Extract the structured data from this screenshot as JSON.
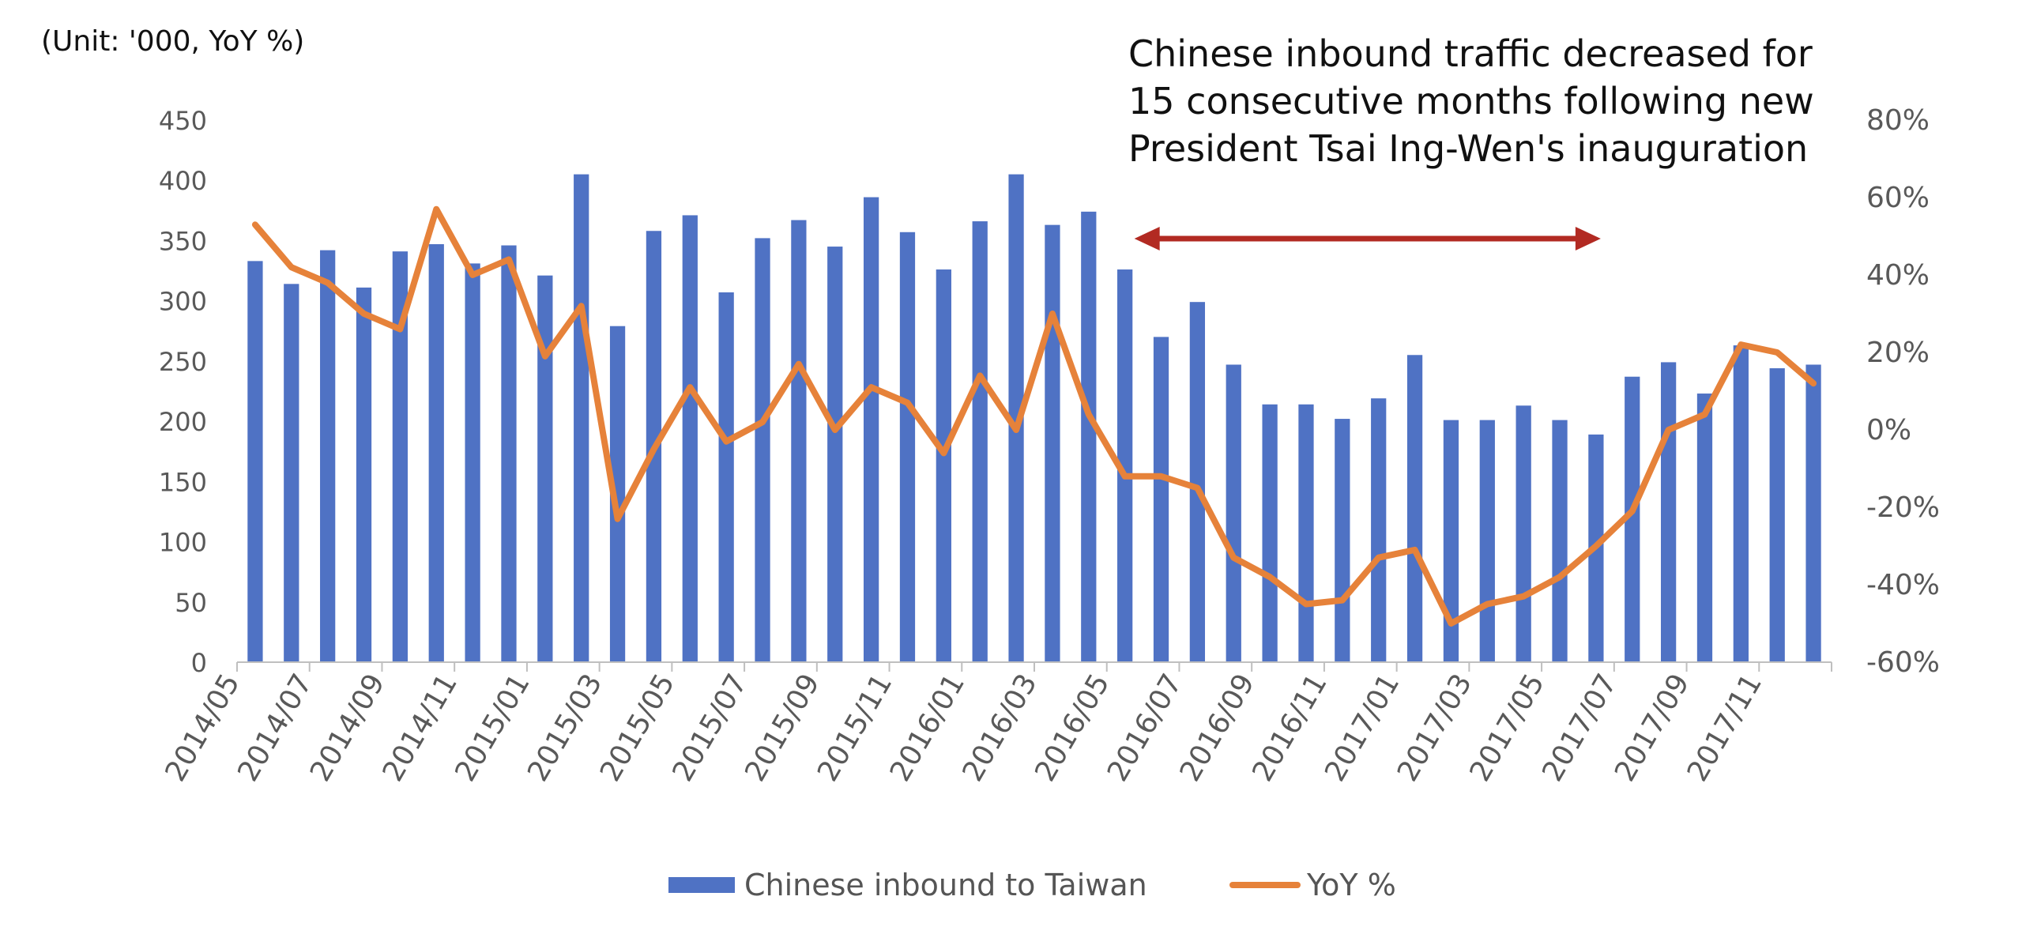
{
  "chart_data": {
    "type": "bar",
    "unit_label": "(Unit: '000, YoY %)",
    "annotation": "Chinese inbound traffic decreased for 15 consecutive months following new President Tsai Ing-Wen's inauguration",
    "annotation_span": [
      "2016/05",
      "2017/06"
    ],
    "categories": [
      "2014/05",
      "2014/06",
      "2014/07",
      "2014/08",
      "2014/09",
      "2014/10",
      "2014/11",
      "2014/12",
      "2015/01",
      "2015/02",
      "2015/03",
      "2015/04",
      "2015/05",
      "2015/06",
      "2015/07",
      "2015/08",
      "2015/09",
      "2015/10",
      "2015/11",
      "2015/12",
      "2016/01",
      "2016/02",
      "2016/03",
      "2016/04",
      "2016/05",
      "2016/06",
      "2016/07",
      "2016/08",
      "2016/09",
      "2016/10",
      "2016/11",
      "2016/12",
      "2017/01",
      "2017/02",
      "2017/03",
      "2017/04",
      "2017/05",
      "2017/06",
      "2017/07",
      "2017/08",
      "2017/09",
      "2017/10",
      "2017/11",
      "2017/12"
    ],
    "x_tick_labels": [
      "2014/05",
      "2014/07",
      "2014/09",
      "2014/11",
      "2015/01",
      "2015/03",
      "2015/05",
      "2015/07",
      "2015/09",
      "2015/11",
      "2016/01",
      "2016/03",
      "2016/05",
      "2016/07",
      "2016/09",
      "2016/11",
      "2017/01",
      "2017/03",
      "2017/05",
      "2017/07",
      "2017/09",
      "2017/11"
    ],
    "series": [
      {
        "name": "Chinese inbound to Taiwan",
        "type": "bar",
        "axis": "left",
        "color": "#4f72c4",
        "values": [
          333,
          314,
          342,
          311,
          341,
          347,
          331,
          346,
          321,
          405,
          279,
          358,
          371,
          307,
          352,
          367,
          345,
          386,
          357,
          326,
          366,
          405,
          363,
          374,
          326,
          270,
          299,
          247,
          214,
          214,
          202,
          219,
          255,
          201,
          201,
          213,
          201,
          189,
          237,
          249,
          223,
          263,
          244,
          247
        ]
      },
      {
        "name": "YoY %",
        "type": "line",
        "axis": "right",
        "color": "#e6823a",
        "values": [
          53,
          42,
          38,
          30,
          26,
          57,
          40,
          44,
          19,
          32,
          -23,
          -5,
          11,
          -3,
          2,
          17,
          0,
          11,
          7,
          -6,
          14,
          0,
          30,
          4,
          -12,
          -12,
          -15,
          -33,
          -38,
          -45,
          -44,
          -33,
          -31,
          -50,
          -45,
          -43,
          -38,
          -30,
          -21,
          0,
          4,
          22,
          20,
          12
        ]
      }
    ],
    "y_left": {
      "min": 0,
      "max": 450,
      "ticks": [
        0,
        50,
        100,
        150,
        200,
        250,
        300,
        350,
        400,
        450
      ]
    },
    "y_right": {
      "min": -60,
      "max": 80,
      "ticks": [
        "-60%",
        "-40%",
        "-20%",
        "0%",
        "20%",
        "40%",
        "60%",
        "80%"
      ]
    },
    "legend_position": "bottom",
    "grid": false,
    "annotation_arrow_color": "#b22a22"
  }
}
